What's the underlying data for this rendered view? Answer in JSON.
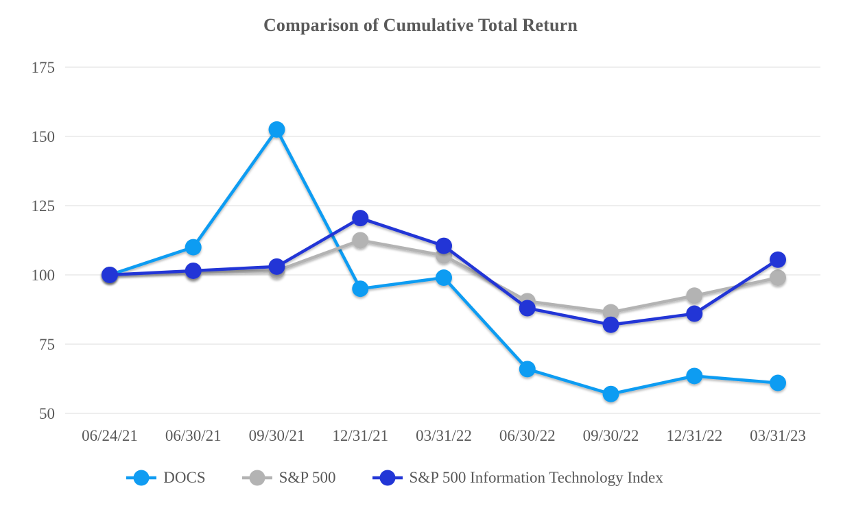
{
  "chart_data": {
    "type": "line",
    "title": "Comparison of Cumulative Total Return",
    "categories": [
      "06/24/21",
      "06/30/21",
      "09/30/21",
      "12/31/21",
      "03/31/22",
      "06/30/22",
      "09/30/22",
      "12/31/22",
      "03/31/23"
    ],
    "series": [
      {
        "name": "DOCS",
        "color": "#109CF2",
        "values": [
          100,
          110,
          152.5,
          95,
          99,
          66,
          57,
          63.5,
          61
        ]
      },
      {
        "name": "S&P 500",
        "color": "#B3B3B3",
        "values": [
          100,
          101,
          101.5,
          112.5,
          107,
          90.5,
          86.5,
          92.5,
          99
        ]
      },
      {
        "name": "S&P 500 Information Technology Index",
        "color": "#2236D6",
        "values": [
          100,
          101.5,
          103,
          120.5,
          110.5,
          88,
          82,
          86,
          105.5
        ]
      }
    ],
    "y_axis": {
      "min": 50,
      "max": 175,
      "step": 25,
      "ticks": [
        175,
        150,
        125,
        100,
        75,
        50
      ]
    },
    "xlabel": "",
    "ylabel": "",
    "grid": true,
    "legend_position": "bottom",
    "text_color": "#595959",
    "gridline_color": "#E8E8E8"
  }
}
